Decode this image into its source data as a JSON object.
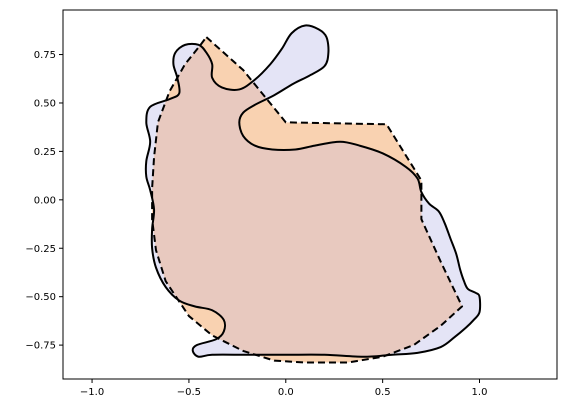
{
  "chart_data": {
    "type": "area",
    "title": "",
    "xlabel": "",
    "ylabel": "",
    "xlim": [
      -1.15,
      1.4
    ],
    "ylim": [
      -0.925,
      0.98
    ],
    "grid": false,
    "x_ticks": [
      {
        "value": -1.0,
        "label": "−1.0"
      },
      {
        "value": -0.5,
        "label": "−0.5"
      },
      {
        "value": 0.0,
        "label": "0.0"
      },
      {
        "value": 0.5,
        "label": "0.5"
      },
      {
        "value": 1.0,
        "label": "1.0"
      }
    ],
    "y_ticks": [
      {
        "value": 0.75,
        "label": "0.75"
      },
      {
        "value": 0.5,
        "label": "0.50"
      },
      {
        "value": 0.25,
        "label": "0.25"
      },
      {
        "value": 0.0,
        "label": "0.00"
      },
      {
        "value": -0.25,
        "label": "−0.25"
      },
      {
        "value": -0.5,
        "label": "−0.50"
      },
      {
        "value": -0.75,
        "label": "−0.75"
      }
    ],
    "series": [
      {
        "style": "solid",
        "fill": "#e4e4f6",
        "stroke": "#000000",
        "points": [
          [
            0.1,
            0.9
          ],
          [
            0.17,
            0.88
          ],
          [
            0.21,
            0.84
          ],
          [
            0.22,
            0.76
          ],
          [
            0.2,
            0.69
          ],
          [
            0.12,
            0.64
          ],
          [
            0.04,
            0.6
          ],
          [
            -0.06,
            0.54
          ],
          [
            -0.16,
            0.49
          ],
          [
            -0.22,
            0.45
          ],
          [
            -0.24,
            0.4
          ],
          [
            -0.22,
            0.33
          ],
          [
            -0.16,
            0.28
          ],
          [
            -0.07,
            0.26
          ],
          [
            0.05,
            0.26
          ],
          [
            0.15,
            0.28
          ],
          [
            0.28,
            0.3
          ],
          [
            0.38,
            0.28
          ],
          [
            0.5,
            0.24
          ],
          [
            0.62,
            0.17
          ],
          [
            0.68,
            0.11
          ],
          [
            0.7,
            0.04
          ],
          [
            0.74,
            -0.02
          ],
          [
            0.79,
            -0.06
          ],
          [
            0.82,
            -0.12
          ],
          [
            0.85,
            -0.2
          ],
          [
            0.88,
            -0.28
          ],
          [
            0.9,
            -0.36
          ],
          [
            0.92,
            -0.42
          ],
          [
            0.94,
            -0.46
          ],
          [
            0.98,
            -0.48
          ],
          [
            1.0,
            -0.5
          ],
          [
            1.0,
            -0.58
          ],
          [
            0.97,
            -0.62
          ],
          [
            0.93,
            -0.66
          ],
          [
            0.87,
            -0.71
          ],
          [
            0.8,
            -0.76
          ],
          [
            0.68,
            -0.79
          ],
          [
            0.55,
            -0.8
          ],
          [
            0.4,
            -0.81
          ],
          [
            0.2,
            -0.8
          ],
          [
            0.0,
            -0.8
          ],
          [
            -0.2,
            -0.8
          ],
          [
            -0.38,
            -0.8
          ],
          [
            -0.45,
            -0.81
          ],
          [
            -0.48,
            -0.78
          ],
          [
            -0.46,
            -0.75
          ],
          [
            -0.36,
            -0.72
          ],
          [
            -0.32,
            -0.68
          ],
          [
            -0.32,
            -0.62
          ],
          [
            -0.38,
            -0.57
          ],
          [
            -0.47,
            -0.55
          ],
          [
            -0.55,
            -0.52
          ],
          [
            -0.62,
            -0.45
          ],
          [
            -0.67,
            -0.35
          ],
          [
            -0.69,
            -0.25
          ],
          [
            -0.69,
            -0.15
          ],
          [
            -0.68,
            -0.05
          ],
          [
            -0.7,
            0.05
          ],
          [
            -0.72,
            0.12
          ],
          [
            -0.72,
            0.2
          ],
          [
            -0.7,
            0.3
          ],
          [
            -0.72,
            0.4
          ],
          [
            -0.7,
            0.48
          ],
          [
            -0.6,
            0.52
          ],
          [
            -0.55,
            0.55
          ],
          [
            -0.56,
            0.63
          ],
          [
            -0.58,
            0.7
          ],
          [
            -0.57,
            0.76
          ],
          [
            -0.52,
            0.8
          ],
          [
            -0.45,
            0.8
          ],
          [
            -0.41,
            0.76
          ],
          [
            -0.38,
            0.7
          ],
          [
            -0.38,
            0.63
          ],
          [
            -0.33,
            0.58
          ],
          [
            -0.24,
            0.57
          ],
          [
            -0.16,
            0.62
          ],
          [
            -0.08,
            0.7
          ],
          [
            -0.02,
            0.78
          ],
          [
            0.03,
            0.86
          ]
        ]
      },
      {
        "style": "dashed",
        "fill": "#f9d2b1",
        "stroke": "#000000",
        "points": [
          [
            -0.41,
            0.84
          ],
          [
            -0.22,
            0.67
          ],
          [
            0.0,
            0.4
          ],
          [
            0.52,
            0.39
          ],
          [
            0.7,
            0.1
          ],
          [
            0.7,
            -0.1
          ],
          [
            0.8,
            -0.32
          ],
          [
            0.91,
            -0.55
          ],
          [
            0.8,
            -0.65
          ],
          [
            0.66,
            -0.75
          ],
          [
            0.5,
            -0.81
          ],
          [
            0.32,
            -0.84
          ],
          [
            0.1,
            -0.84
          ],
          [
            -0.06,
            -0.83
          ],
          [
            -0.22,
            -0.78
          ],
          [
            -0.38,
            -0.7
          ],
          [
            -0.5,
            -0.6
          ],
          [
            -0.62,
            -0.42
          ],
          [
            -0.67,
            -0.26
          ],
          [
            -0.69,
            -0.1
          ],
          [
            -0.69,
            0.06
          ],
          [
            -0.68,
            0.22
          ],
          [
            -0.66,
            0.4
          ],
          [
            -0.6,
            0.56
          ],
          [
            -0.52,
            0.7
          ],
          [
            -0.44,
            0.8
          ]
        ]
      }
    ],
    "overlap_fill": "#e8c9bf"
  }
}
